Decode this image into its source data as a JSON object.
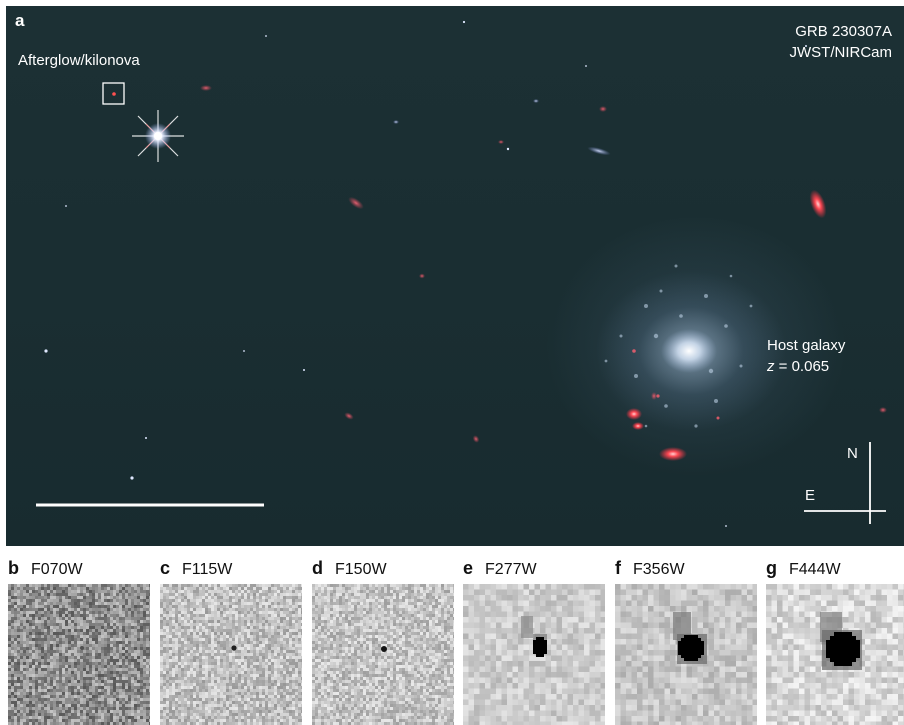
{
  "main_panel": {
    "panel_letter": "a",
    "title_line1": "GRB 230307A",
    "title_line2": "JWST/NIRCam",
    "afterglow_label": "Afterglow/kilonova",
    "host_label": "Host galaxy",
    "redshift_symbol": "z",
    "redshift_value": " = 0.065",
    "compass_north": "N",
    "compass_east": "E"
  },
  "cutouts": [
    {
      "letter": "b",
      "filter": "F070W"
    },
    {
      "letter": "c",
      "filter": "F115W"
    },
    {
      "letter": "d",
      "filter": "F150W"
    },
    {
      "letter": "e",
      "filter": "F277W"
    },
    {
      "letter": "f",
      "filter": "F356W"
    },
    {
      "letter": "g",
      "filter": "F444W"
    }
  ],
  "colors": {
    "sky_background": "#1b2f33",
    "red_galaxies": "#ff4a4a",
    "label_text": "#ffffff"
  }
}
